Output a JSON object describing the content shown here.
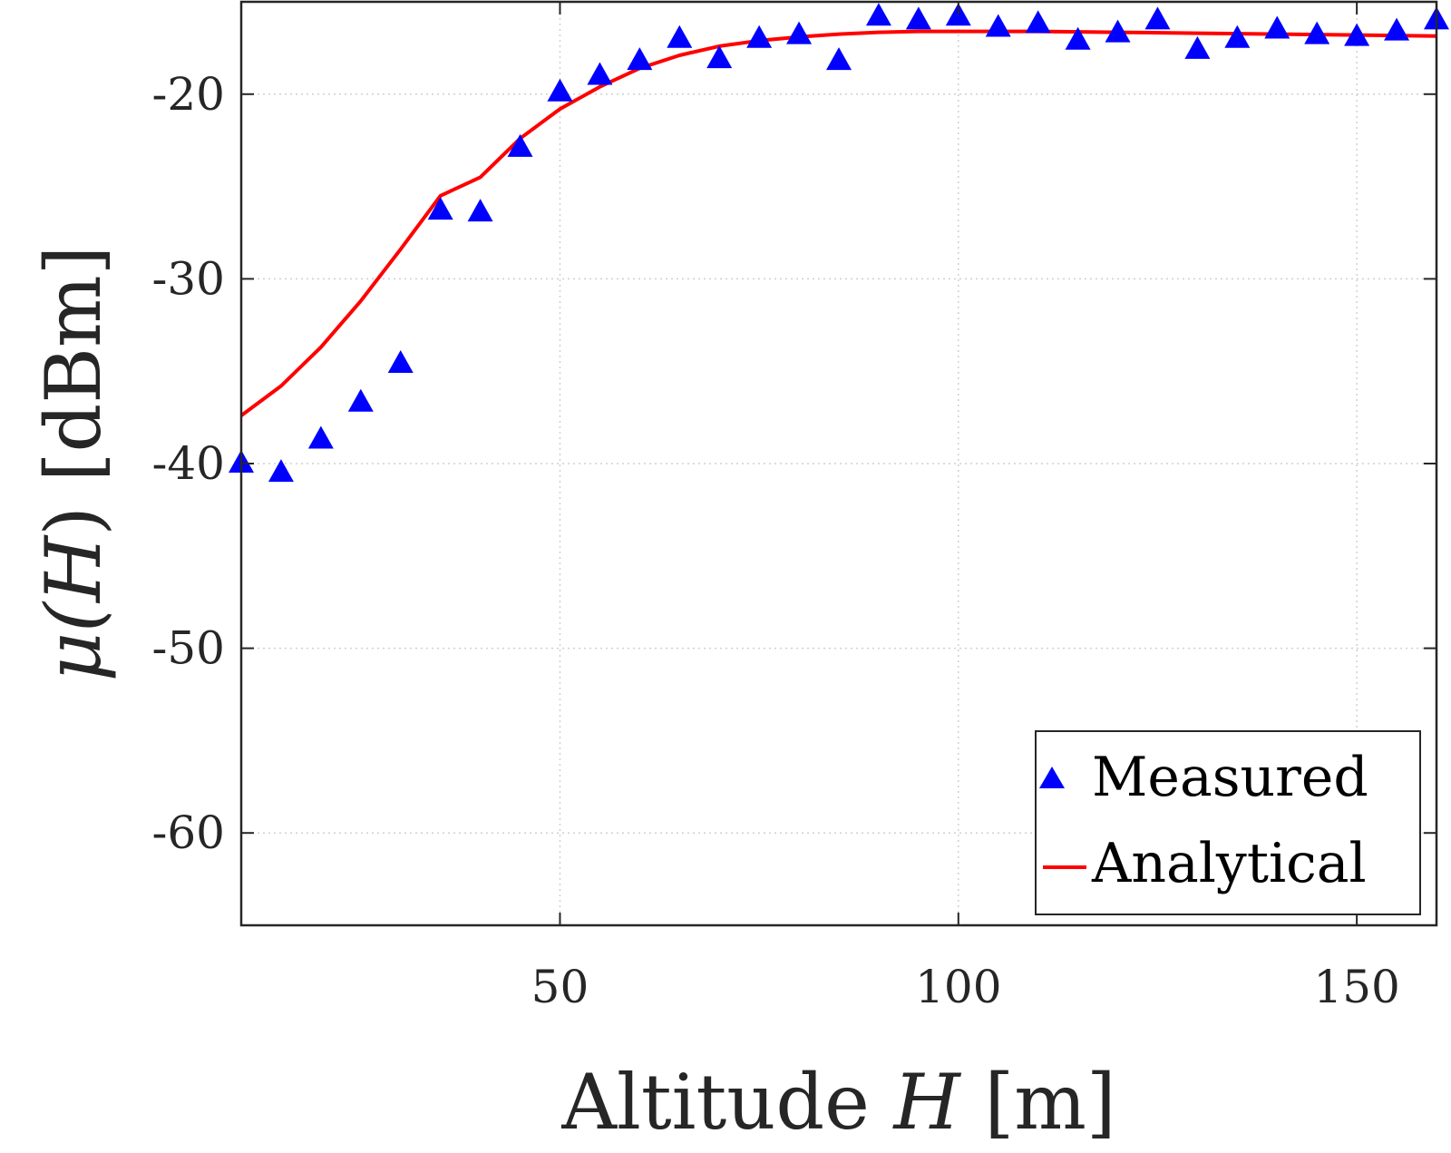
{
  "chart_data": {
    "type": "scatter",
    "title": "",
    "xlabel": {
      "prefix": "Altitude ",
      "var": "H",
      "suffix": " [m]"
    },
    "ylabel": {
      "prefix": "μ(",
      "var": "H",
      "suffix": ") [dBm]"
    },
    "xlim": [
      10,
      160
    ],
    "ylim": [
      -65,
      -15
    ],
    "xticks": [
      50,
      100,
      150
    ],
    "yticks": [
      -60,
      -50,
      -40,
      -30,
      -20
    ],
    "xtick_labels": [
      "50",
      "100",
      "150"
    ],
    "ytick_labels": [
      "-60",
      "-50",
      "-40",
      "-30",
      "-20"
    ],
    "grid": true,
    "legend_position": "bottom-right",
    "series": [
      {
        "name": "Measured",
        "kind": "markers",
        "marker": "triangle",
        "color": "#0000ff",
        "x": [
          10,
          15,
          20,
          25,
          30,
          35,
          40,
          45,
          50,
          55,
          60,
          65,
          70,
          75,
          80,
          85,
          90,
          95,
          100,
          105,
          110,
          115,
          120,
          125,
          130,
          135,
          140,
          145,
          150,
          155,
          160
        ],
        "y": [
          -40,
          -40.5,
          -38.7,
          -36.7,
          -34.6,
          -26.3,
          -26.4,
          -22.9,
          -19.9,
          -19.0,
          -18.2,
          -17.0,
          -18.1,
          -17.0,
          -16.8,
          -18.2,
          -15.8,
          -16.0,
          -15.8,
          -16.4,
          -16.2,
          -17.1,
          -16.7,
          -16.0,
          -17.6,
          -17.0,
          -16.5,
          -16.8,
          -16.9,
          -16.6,
          -16.0
        ]
      },
      {
        "name": "Analytical",
        "kind": "line",
        "color": "#ff0000",
        "x": [
          10,
          15,
          20,
          25,
          30,
          35,
          40,
          45,
          50,
          55,
          60,
          65,
          70,
          75,
          80,
          85,
          90,
          95,
          100,
          110,
          120,
          130,
          140,
          150,
          160
        ],
        "y": [
          -37.4,
          -35.8,
          -33.7,
          -31.2,
          -28.4,
          -25.5,
          -24.5,
          -22.4,
          -20.8,
          -19.6,
          -18.6,
          -17.9,
          -17.4,
          -17.1,
          -16.9,
          -16.75,
          -16.65,
          -16.6,
          -16.6,
          -16.6,
          -16.65,
          -16.7,
          -16.75,
          -16.8,
          -16.85
        ]
      }
    ]
  }
}
